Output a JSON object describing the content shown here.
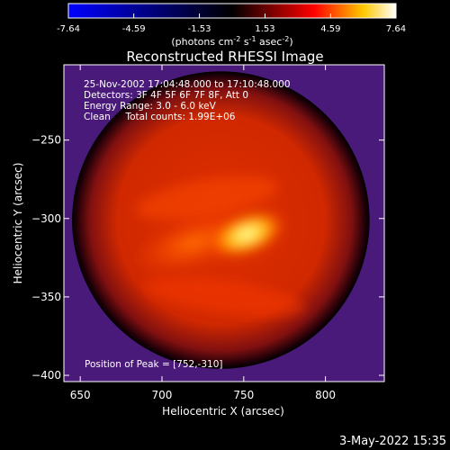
{
  "colorbar": {
    "tick_labels": [
      "-7.64",
      "-4.59",
      "-1.53",
      "1.53",
      "4.59",
      "7.64"
    ],
    "tick_values": [
      -7.64,
      -4.59,
      -1.53,
      1.53,
      4.59,
      7.64
    ],
    "range": [
      -7.64,
      7.64
    ],
    "units_main": "(photons cm",
    "units_sup1": "-2",
    "units_mid": " s",
    "units_sup2": "-1",
    "units_end": " asec",
    "units_sup3": "-2",
    "units_close": ")",
    "colors": [
      "#0000ff",
      "#000000",
      "#ff0000",
      "#ffc800",
      "#ffffff"
    ]
  },
  "chart_data": {
    "type": "heatmap",
    "title": "Reconstructed RHESSI Image",
    "xlabel": "Heliocentric X (arcsec)",
    "ylabel": "Heliocentric Y (arcsec)",
    "xlim": [
      640,
      836
    ],
    "ylim": [
      -404,
      -202
    ],
    "x_ticks": [
      650,
      700,
      750,
      800
    ],
    "y_ticks": [
      -250,
      -300,
      -350,
      -400
    ],
    "x_tick_labels": [
      "650",
      "700",
      "750",
      "800"
    ],
    "y_tick_labels": [
      "−250",
      "−300",
      "−350",
      "−400"
    ],
    "background_color": "#4a1a7a",
    "peak_position": [
      752,
      -310
    ],
    "disk_center": [
      736,
      -301
    ],
    "disk_radius": 91,
    "annotations": [
      "25-Nov-2002 17:04:48.000 to 17:10:48.000",
      "Detectors: 3F 4F 5F 6F 7F 8F, Att 0",
      "Energy Range: 3.0 - 6.0 keV",
      "Clean     Total counts: 1.99E+06"
    ],
    "peak_label": "Position of Peak = [752,-310]"
  },
  "footer": {
    "timestamp": "3-May-2022 15:35"
  }
}
